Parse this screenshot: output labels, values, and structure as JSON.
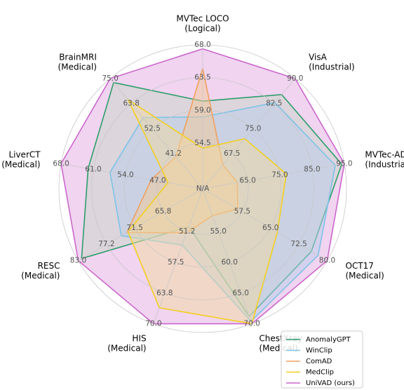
{
  "chart_data": {
    "type": "radar",
    "na_label": "N/A",
    "axes": [
      {
        "label": [
          "MVTec LOCO",
          "(Logical)"
        ],
        "ticks": [
          "54.5",
          "59.0",
          "63.5",
          "68.0"
        ]
      },
      {
        "label": [
          "VisA",
          "(Industrial)"
        ],
        "ticks": [
          "67.5",
          "75.0",
          "82.5",
          "90.0"
        ]
      },
      {
        "label": [
          "MVTec-AD",
          "(Industrial)"
        ],
        "ticks": [
          "65.0",
          "75.0",
          "85.0",
          "95.0"
        ]
      },
      {
        "label": [
          "OCT17",
          "(Medical)"
        ],
        "ticks": [
          "57.5",
          "65.0",
          "72.5",
          "80.0"
        ]
      },
      {
        "label": [
          "ChestXray",
          "(Medical)"
        ],
        "ticks": [
          "55.0",
          "60.0",
          "65.0",
          "70.0"
        ]
      },
      {
        "label": [
          "HIS",
          "(Medical)"
        ],
        "ticks": [
          "51.2",
          "57.5",
          "63.8",
          "70.0"
        ]
      },
      {
        "label": [
          "RESC",
          "(Medical)"
        ],
        "ticks": [
          "65.8",
          "71.5",
          "77.2",
          "83.0"
        ]
      },
      {
        "label": [
          "LiverCT",
          "(Medical)"
        ],
        "ticks": [
          "47.0",
          "54.0",
          "61.0",
          "68.0"
        ]
      },
      {
        "label": [
          "BrainMRI",
          "(Medical)"
        ],
        "ticks": [
          "41.2",
          "52.5",
          "63.8",
          "75.0"
        ]
      }
    ],
    "series": [
      {
        "name": "UniVAD (ours)",
        "color": "#cc66cc",
        "fill": "#e2a9e2",
        "values": [
          0.97,
          1.0,
          1.0,
          1.0,
          1.0,
          1.0,
          1.0,
          1.0,
          1.0
        ]
      },
      {
        "name": "AnomalyGPT",
        "color": "#2e9e6b",
        "fill": "#c8d5c8",
        "values": [
          0.57,
          0.84,
          0.98,
          0.86,
          0.94,
          0.21,
          0.97,
          0.79,
          0.96
        ]
      },
      {
        "name": "WinClip",
        "color": "#7ec3e6",
        "fill": "#b6cde9",
        "values": [
          0.45,
          0.76,
          0.93,
          0.92,
          0.98,
          0.36,
          0.62,
          0.62,
          0.61
        ]
      },
      {
        "name": "ComAD",
        "color": "#f0a060",
        "fill": "#f4c896",
        "values": [
          0.82,
          0.14,
          0.17,
          0.21,
          0.12,
          0.26,
          0.57,
          0.3,
          0.22
        ]
      },
      {
        "name": "MedClip",
        "color": "#f2cf1e",
        "fill": "#f1d9a0",
        "values": [
          0.21,
          0.4,
          0.55,
          0.56,
          1.0,
          0.87,
          0.56,
          0.17,
          0.79
        ]
      }
    ],
    "legend": {
      "placement": "bottom-right",
      "order": [
        "AnomalyGPT",
        "WinClip",
        "ComAD",
        "MedClip",
        "UniVAD (ours)"
      ]
    },
    "grid": true
  }
}
